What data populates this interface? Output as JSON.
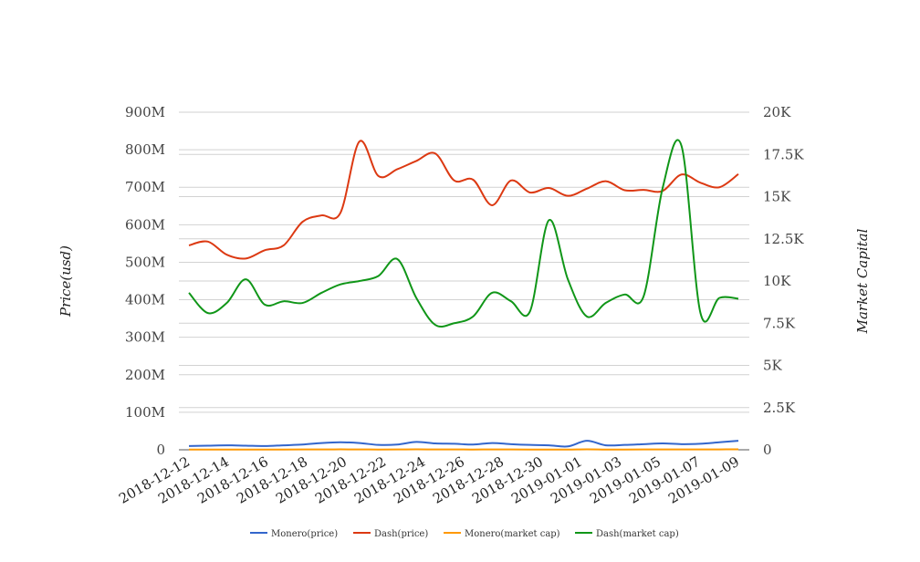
{
  "chart_data": {
    "type": "line",
    "title": "",
    "ylabel_left": "Price(usd)",
    "ylabel_right": "Market Capital",
    "y_left_ticks": [
      "0",
      "100M",
      "200M",
      "300M",
      "400M",
      "500M",
      "600M",
      "700M",
      "800M",
      "900M"
    ],
    "y_right_ticks": [
      "0",
      "2.5K",
      "5K",
      "7.5K",
      "10K",
      "12.5K",
      "15K",
      "17.5K",
      "20K"
    ],
    "ylim_left": [
      0,
      900000000
    ],
    "ylim_right": [
      0,
      20000
    ],
    "x_tick_labels": [
      "2018-12-12",
      "2018-12-14",
      "2018-12-16",
      "2018-12-18",
      "2018-12-20",
      "2018-12-22",
      "2018-12-24",
      "2018-12-26",
      "2018-12-28",
      "2018-12-30",
      "2019-01-01",
      "2019-01-03",
      "2019-01-05",
      "2019-01-07",
      "2019-01-09"
    ],
    "x": [
      "2018-12-12",
      "2018-12-13",
      "2018-12-14",
      "2018-12-15",
      "2018-12-16",
      "2018-12-17",
      "2018-12-18",
      "2018-12-19",
      "2018-12-20",
      "2018-12-21",
      "2018-12-22",
      "2018-12-23",
      "2018-12-24",
      "2018-12-25",
      "2018-12-26",
      "2018-12-27",
      "2018-12-28",
      "2018-12-29",
      "2018-12-30",
      "2018-12-31",
      "2019-01-01",
      "2019-01-02",
      "2019-01-03",
      "2019-01-04",
      "2019-01-05",
      "2019-01-06",
      "2019-01-07",
      "2019-01-08",
      "2019-01-09",
      "2019-01-10"
    ],
    "legend_position": "bottom",
    "series": [
      {
        "name": "Monero(price)",
        "axis": "left",
        "color": "#3366cc",
        "values": [
          10000000,
          11000000,
          12000000,
          11000000,
          10000000,
          12000000,
          14000000,
          18000000,
          20000000,
          18000000,
          13000000,
          14000000,
          21000000,
          17000000,
          16000000,
          14000000,
          18000000,
          15000000,
          13000000,
          12000000,
          9000000,
          24000000,
          12000000,
          13000000,
          15000000,
          17000000,
          15000000,
          16000000,
          20000000,
          24000000
        ]
      },
      {
        "name": "Dash(price)",
        "axis": "left",
        "color": "#dc3912",
        "values": [
          545000000,
          555000000,
          520000000,
          510000000,
          532000000,
          545000000,
          608000000,
          625000000,
          632000000,
          822000000,
          730000000,
          748000000,
          770000000,
          790000000,
          718000000,
          720000000,
          652000000,
          718000000,
          686000000,
          698000000,
          677000000,
          696000000,
          716000000,
          692000000,
          693000000,
          690000000,
          734000000,
          712000000,
          700000000,
          735000000
        ]
      },
      {
        "name": "Monero(market cap)",
        "axis": "right",
        "color": "#ff9900",
        "values": [
          15,
          16,
          17,
          16,
          15,
          16,
          18,
          22,
          24,
          22,
          17,
          18,
          24,
          20,
          19,
          17,
          21,
          18,
          16,
          15,
          13,
          26,
          15,
          16,
          18,
          20,
          18,
          19,
          23,
          26
        ]
      },
      {
        "name": "Dash(market cap)",
        "axis": "right",
        "color": "#109618",
        "values": [
          9300,
          8100,
          8700,
          10100,
          8600,
          8800,
          8700,
          9300,
          9800,
          10000,
          10300,
          11300,
          9000,
          7400,
          7500,
          7900,
          9300,
          8800,
          8200,
          13600,
          10100,
          7900,
          8700,
          9200,
          9100,
          15500,
          18000,
          8100,
          9000,
          8950
        ]
      }
    ]
  }
}
